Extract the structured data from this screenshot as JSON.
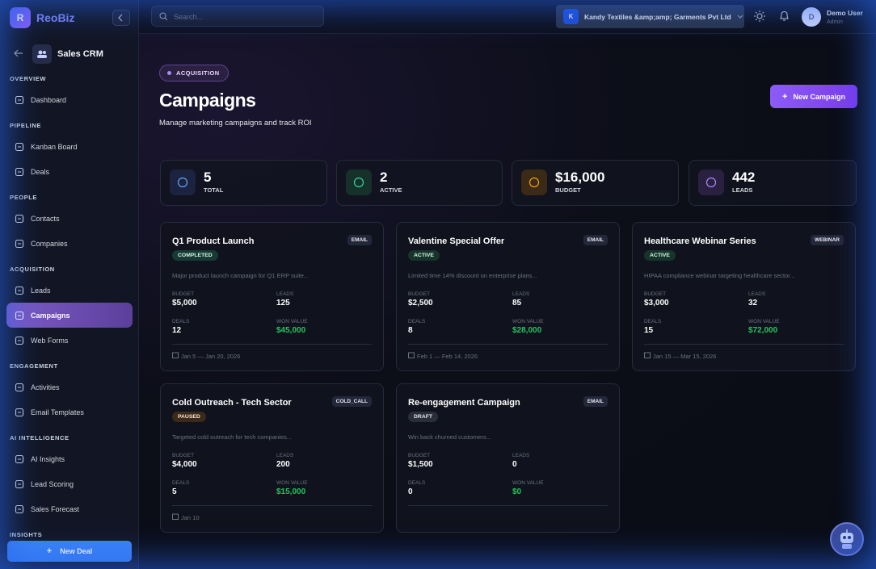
{
  "sidebar": {
    "logo_letter": "R",
    "brand": "ReoBiz",
    "module": "Sales CRM",
    "sections": [
      {
        "title": "OVERVIEW",
        "items": [
          "Dashboard"
        ]
      },
      {
        "title": "PIPELINE",
        "items": [
          "Kanban Board",
          "Deals"
        ]
      },
      {
        "title": "PEOPLE",
        "items": [
          "Contacts",
          "Companies"
        ]
      },
      {
        "title": "ACQUISITION",
        "items": [
          "Leads",
          "Campaigns",
          "Web Forms"
        ]
      },
      {
        "title": "ENGAGEMENT",
        "items": [
          "Activities",
          "Email Templates"
        ]
      },
      {
        "title": "AI INTELLIGENCE",
        "items": [
          "AI Insights",
          "Lead Scoring",
          "Sales Forecast"
        ]
      },
      {
        "title": "INSIGHTS",
        "items": []
      }
    ],
    "new_deal": "New Deal"
  },
  "topbar": {
    "search_placeholder": "Search...",
    "org_initial": "K",
    "org_name": "Kandy Textiles &amp;amp; Garments Pvt Ltd",
    "user_initial": "D",
    "user_name": "Demo User",
    "user_role": "Admin"
  },
  "header": {
    "badge": "ACQUISITION",
    "title": "Campaigns",
    "subtitle": "Manage marketing campaigns and track ROI",
    "new_campaign": "New Campaign"
  },
  "stats": [
    {
      "value": "5",
      "label": "TOTAL"
    },
    {
      "value": "2",
      "label": "ACTIVE"
    },
    {
      "value": "$16,000",
      "label": "BUDGET"
    },
    {
      "value": "442",
      "label": "LEADS"
    }
  ],
  "campaign_labels": {
    "budget": "BUDGET",
    "leads": "LEADS",
    "deals": "DEALS",
    "won_value": "WON VALUE"
  },
  "campaigns": [
    {
      "name": "Q1 Product Launch",
      "channel": "EMAIL",
      "status": "COMPLETED",
      "description": "Major product launch campaign for Q1 ERP suite...",
      "budget": "$5,000",
      "leads": "125",
      "deals": "12",
      "won_value": "$45,000",
      "dates": "Jan 5 — Jan 20, 2026"
    },
    {
      "name": "Valentine Special Offer",
      "channel": "EMAIL",
      "status": "ACTIVE",
      "description": "Limited time 14% discount on enterprise plans...",
      "budget": "$2,500",
      "leads": "85",
      "deals": "8",
      "won_value": "$28,000",
      "dates": "Feb 1 — Feb 14, 2026"
    },
    {
      "name": "Healthcare Webinar Series",
      "channel": "WEBINAR",
      "status": "ACTIVE",
      "description": "HIPAA compliance webinar targeting healthcare sector...",
      "budget": "$3,000",
      "leads": "32",
      "deals": "15",
      "won_value": "$72,000",
      "dates": "Jan 15 — Mar 15, 2026"
    },
    {
      "name": "Cold Outreach - Tech Sector",
      "channel": "COLD_CALL",
      "status": "PAUSED",
      "description": "Targeted cold outreach for tech companies...",
      "budget": "$4,000",
      "leads": "200",
      "deals": "5",
      "won_value": "$15,000",
      "dates": "Jan 10"
    },
    {
      "name": "Re-engagement Campaign",
      "channel": "EMAIL",
      "status": "DRAFT",
      "description": "Win back churned customers...",
      "budget": "$1,500",
      "leads": "0",
      "deals": "0",
      "won_value": "$0"
    }
  ]
}
